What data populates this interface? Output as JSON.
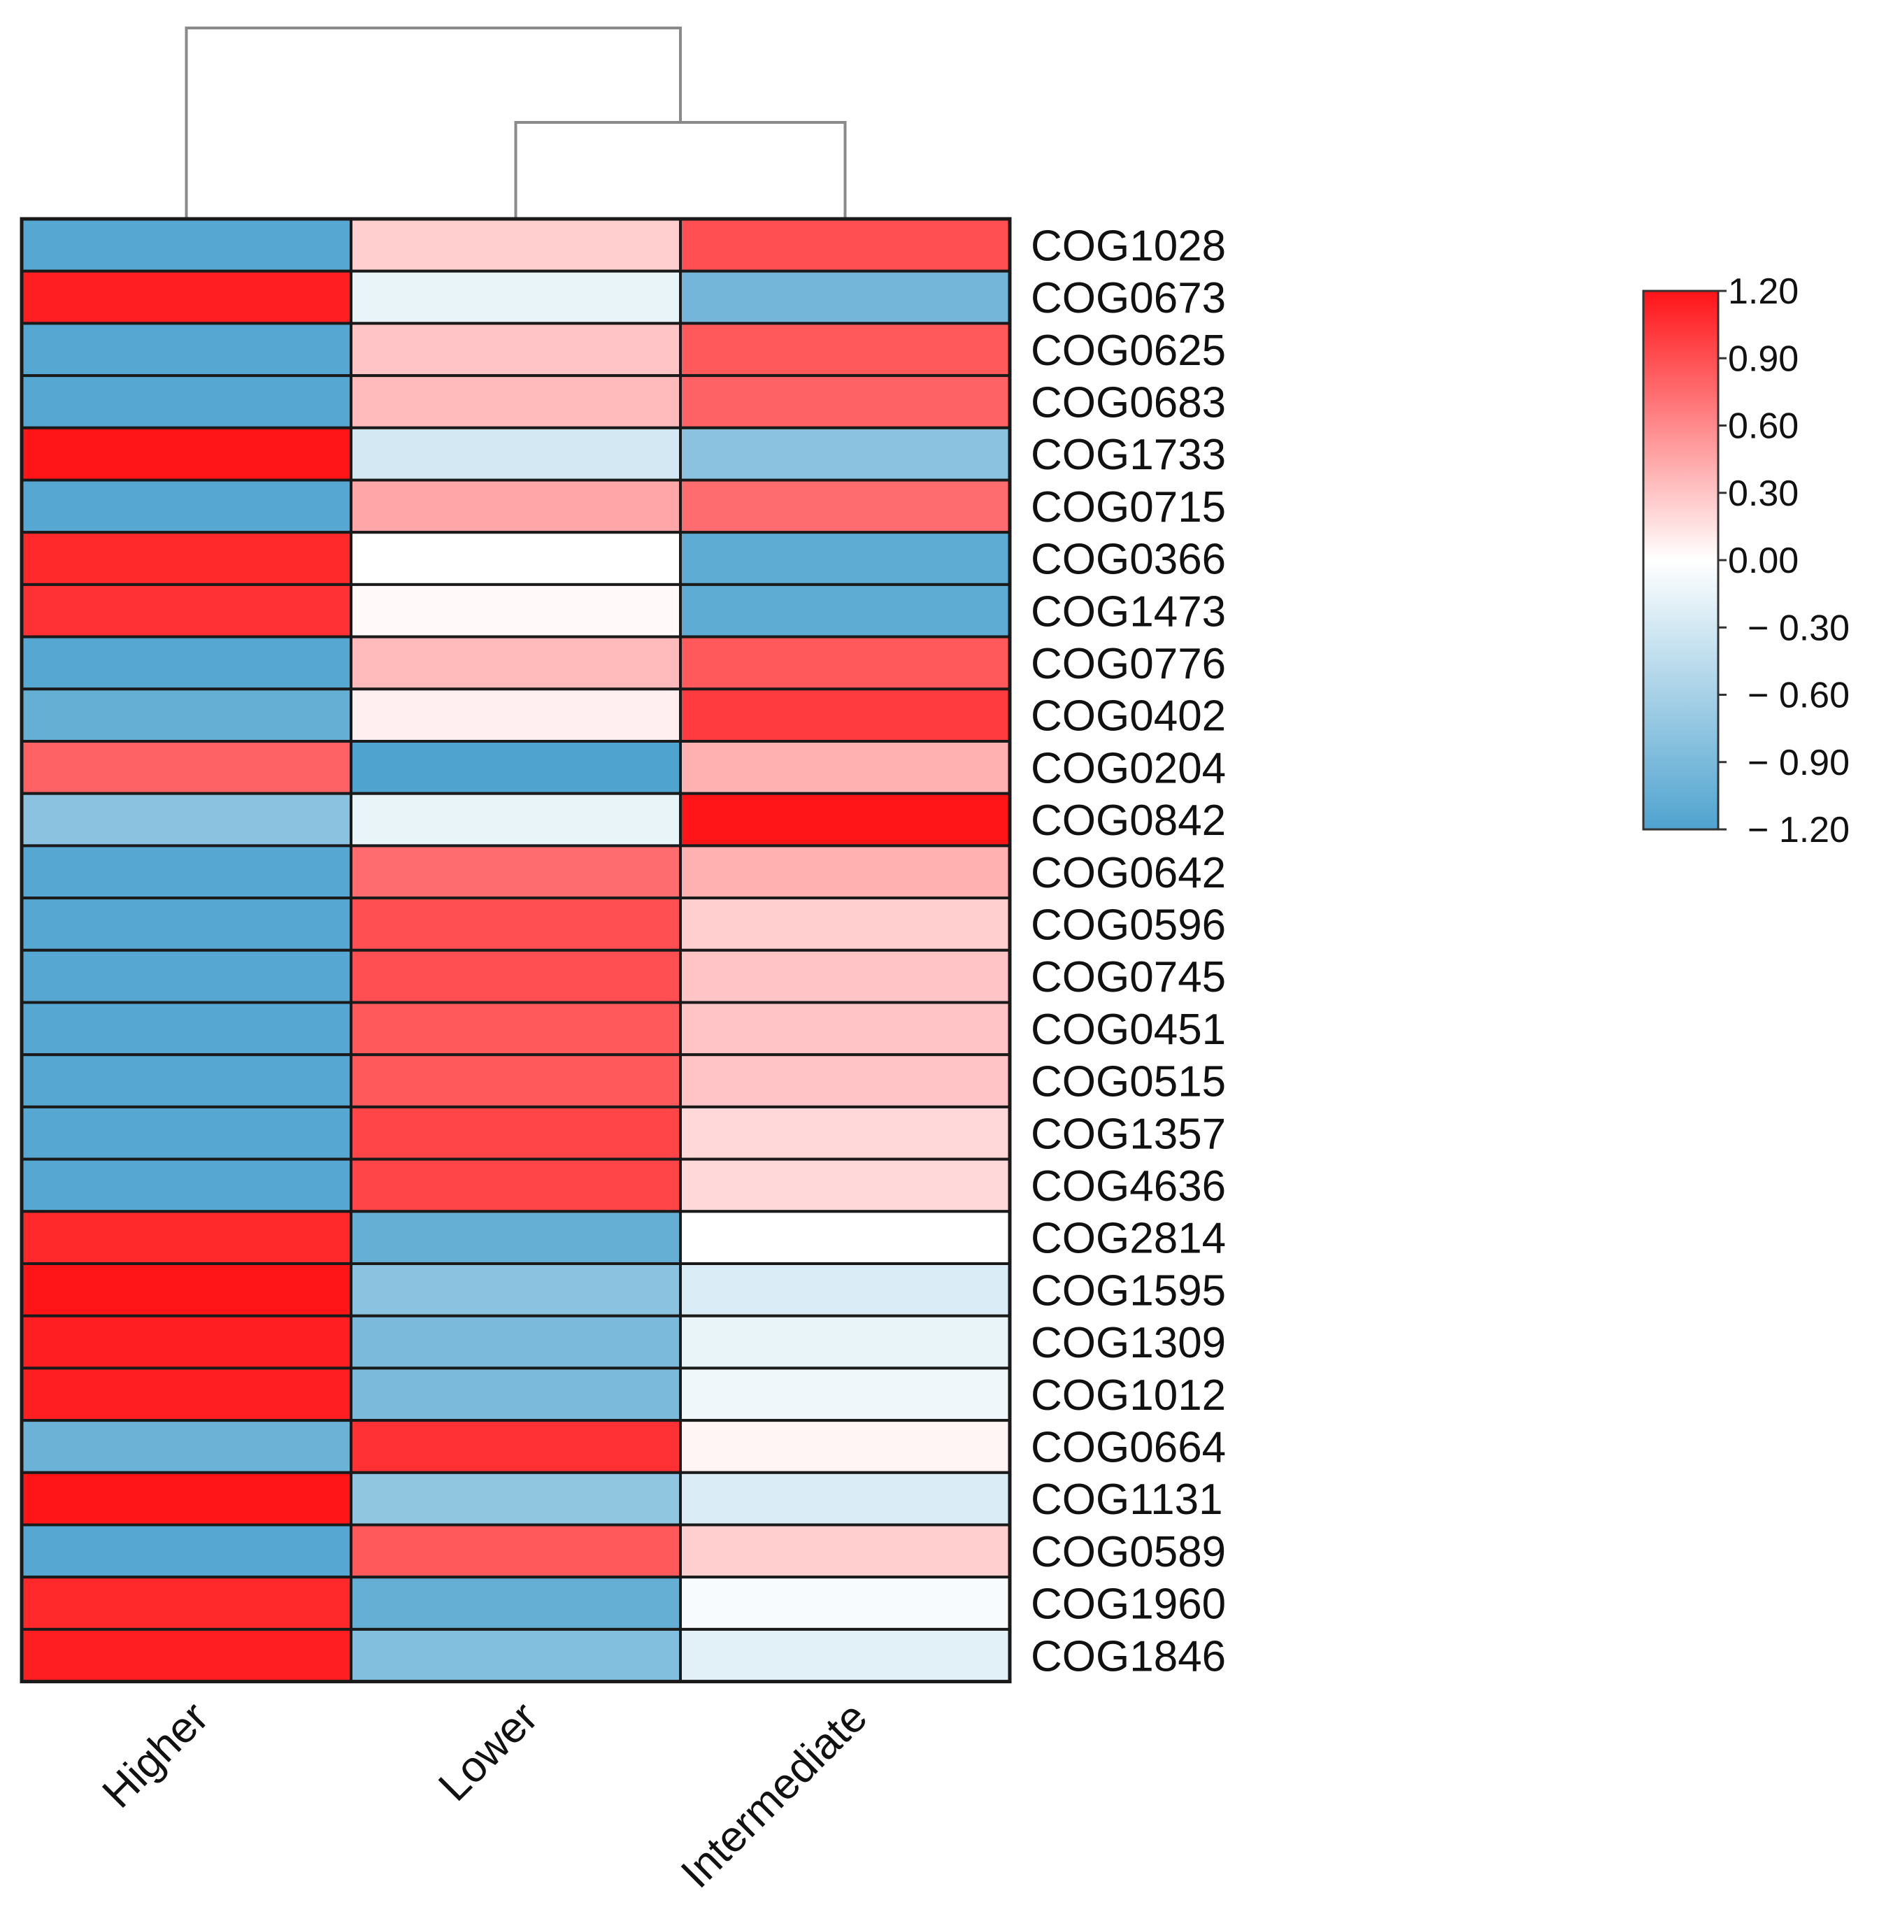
{
  "chart_data": {
    "type": "heatmap",
    "title": "",
    "xlabel": "",
    "ylabel": "",
    "columns": [
      "Higher",
      "Lower",
      "Intermediate"
    ],
    "rows": [
      "COG1028",
      "COG0673",
      "COG0625",
      "COG0683",
      "COG1733",
      "COG0715",
      "COG0366",
      "COG1473",
      "COG0776",
      "COG0402",
      "COG0204",
      "COG0842",
      "COG0642",
      "COG0596",
      "COG0745",
      "COG0451",
      "COG0515",
      "COG1357",
      "COG4636",
      "COG2814",
      "COG1595",
      "COG1309",
      "COG1012",
      "COG0664",
      "COG1131",
      "COG0589",
      "COG1960",
      "COG1846"
    ],
    "values": [
      [
        -1.15,
        0.25,
        0.9
      ],
      [
        1.15,
        -0.15,
        -0.95
      ],
      [
        -1.15,
        0.3,
        0.85
      ],
      [
        -1.15,
        0.35,
        0.8
      ],
      [
        1.2,
        -0.3,
        -0.8
      ],
      [
        -1.15,
        0.45,
        0.75
      ],
      [
        1.1,
        0.0,
        -1.1
      ],
      [
        1.05,
        0.03,
        -1.1
      ],
      [
        -1.15,
        0.35,
        0.85
      ],
      [
        -1.05,
        0.08,
        1.0
      ],
      [
        0.8,
        -1.2,
        0.4
      ],
      [
        -0.8,
        -0.15,
        1.2
      ],
      [
        -1.15,
        0.75,
        0.4
      ],
      [
        -1.15,
        0.9,
        0.25
      ],
      [
        -1.15,
        0.9,
        0.3
      ],
      [
        -1.15,
        0.85,
        0.3
      ],
      [
        -1.15,
        0.85,
        0.3
      ],
      [
        -1.15,
        0.95,
        0.2
      ],
      [
        -1.15,
        0.95,
        0.2
      ],
      [
        1.1,
        -1.05,
        0.0
      ],
      [
        1.2,
        -0.8,
        -0.25
      ],
      [
        1.15,
        -0.9,
        -0.15
      ],
      [
        1.15,
        -0.9,
        -0.1
      ],
      [
        -1.0,
        1.05,
        0.05
      ],
      [
        1.2,
        -0.75,
        -0.25
      ],
      [
        -1.15,
        0.85,
        0.25
      ],
      [
        1.1,
        -1.05,
        -0.05
      ],
      [
        1.15,
        -0.85,
        -0.2
      ]
    ],
    "colorbar": {
      "min": -1.2,
      "max": 1.2,
      "ticks": [
        1.2,
        0.9,
        0.6,
        0.3,
        0.0,
        -0.3,
        -0.6,
        -0.9,
        -1.2
      ],
      "tick_labels": [
        "1.20",
        "0.90",
        "0.60",
        "0.30",
        "0.00",
        "− 0.30",
        "− 0.60",
        "− 0.90",
        "− 1.20"
      ],
      "colors": {
        "low": "#4fa3cf",
        "mid": "#ffffff",
        "high": "#ff1418"
      }
    },
    "column_dendrogram": {
      "merges": [
        {
          "left": "Lower",
          "right": "Intermediate"
        },
        {
          "left": "Higher",
          "right": [
            "Lower",
            "Intermediate"
          ]
        }
      ]
    },
    "legend": "right",
    "grid": true
  }
}
